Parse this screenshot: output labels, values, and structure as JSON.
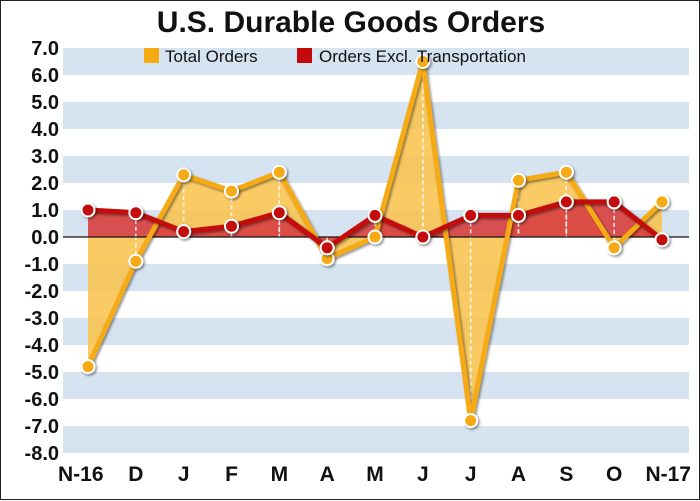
{
  "colors": {
    "total": "#f5aa12",
    "total_fill": "#f9c24a",
    "excl": "#c30a0a",
    "excl_fill": "#d84242",
    "band": "#d6e3f0",
    "zero_line": "#111111"
  },
  "chart_data": {
    "type": "line",
    "title": "U.S. Durable Goods Orders",
    "xlabel": "",
    "ylabel": "",
    "ylim": [
      -8.0,
      7.0
    ],
    "ytick_labels": [
      "7.0",
      "6.0",
      "5.0",
      "4.0",
      "3.0",
      "2.0",
      "1.0",
      "0.0",
      "-1.0",
      "-2.0",
      "-3.0",
      "-4.0",
      "-5.0",
      "-6.0",
      "-7.0",
      "-8.0"
    ],
    "categories": [
      "N-16",
      "D",
      "J",
      "F",
      "M",
      "A",
      "M",
      "J",
      "J",
      "A",
      "S",
      "O",
      "N-17"
    ],
    "grid": "alternating horizontal bands",
    "legend_position": "top",
    "series": [
      {
        "name": "Total Orders",
        "values": [
          -4.8,
          -0.9,
          2.3,
          1.7,
          2.4,
          -0.8,
          0.0,
          6.5,
          -6.8,
          2.1,
          2.4,
          -0.4,
          1.3
        ]
      },
      {
        "name": "Orders Excl. Transportation",
        "values": [
          1.0,
          0.9,
          0.2,
          0.4,
          0.9,
          -0.4,
          0.8,
          0.0,
          0.8,
          0.8,
          1.3,
          1.3,
          -0.1
        ]
      }
    ]
  }
}
